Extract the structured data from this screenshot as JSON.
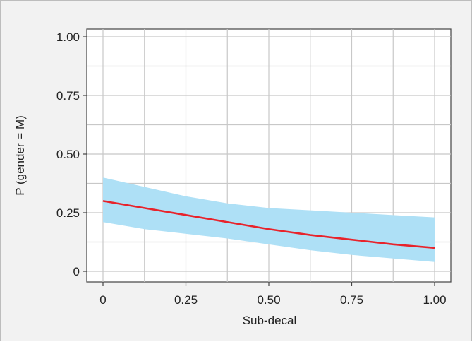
{
  "chart_data": {
    "type": "line",
    "title": "",
    "xlabel": "Sub-decal",
    "ylabel": "P (gender = M)",
    "xlim": [
      0,
      1
    ],
    "ylim": [
      0,
      1
    ],
    "grid": true,
    "x_ticks": [
      0,
      0.25,
      0.5,
      0.75,
      1.0
    ],
    "x_tick_labels": [
      "0",
      "0.25",
      "0.50",
      "0.75",
      "1.00"
    ],
    "y_ticks": [
      0,
      0.25,
      0.5,
      0.75,
      1.0
    ],
    "y_tick_labels": [
      "0",
      "0.25",
      "0.50",
      "0.75",
      "1.00"
    ],
    "series": [
      {
        "x": [
          0,
          0.125,
          0.25,
          0.375,
          0.5,
          0.625,
          0.75,
          0.875,
          1.0
        ],
        "y": [
          0.3,
          0.27,
          0.24,
          0.21,
          0.18,
          0.155,
          0.135,
          0.115,
          0.1
        ],
        "lower": [
          0.21,
          0.18,
          0.16,
          0.14,
          0.115,
          0.09,
          0.07,
          0.055,
          0.04
        ],
        "upper": [
          0.4,
          0.36,
          0.32,
          0.29,
          0.27,
          0.26,
          0.25,
          0.24,
          0.23
        ],
        "color": "#e8232b",
        "band_color": "#aee0f6"
      }
    ]
  },
  "colors": {
    "background": "#f2f2f2",
    "plot_area": "#ffffff",
    "grid": "#c8c8c8",
    "axis": "#444444"
  }
}
